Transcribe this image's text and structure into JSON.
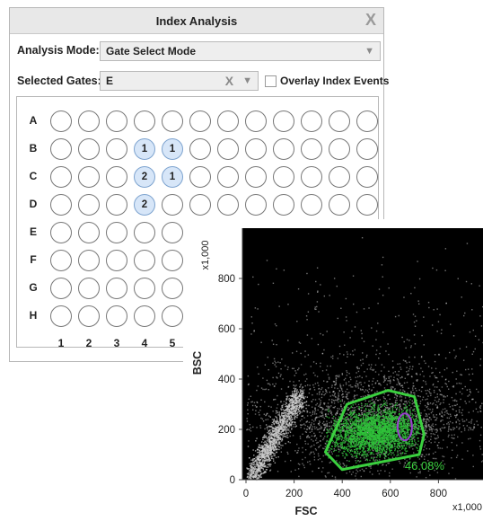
{
  "window": {
    "title": "Index Analysis",
    "close_glyph": "X"
  },
  "analysis_mode": {
    "label": "Analysis Mode:",
    "value": "Gate Select Mode",
    "caret": "▼"
  },
  "selected_gates": {
    "label": "Selected Gates:",
    "value": "E",
    "clear_glyph": "X",
    "caret": "▼"
  },
  "overlay": {
    "label": "Overlay Index Events",
    "checked": false
  },
  "plate": {
    "rows": [
      "A",
      "B",
      "C",
      "D",
      "E",
      "F",
      "G",
      "H"
    ],
    "columns": [
      "1",
      "2",
      "3",
      "4",
      "5"
    ],
    "visible_columns": 12,
    "selected_wells": [
      {
        "row": "B",
        "col": 4,
        "label": "1"
      },
      {
        "row": "B",
        "col": 5,
        "label": "1"
      },
      {
        "row": "C",
        "col": 4,
        "label": "2"
      },
      {
        "row": "C",
        "col": 5,
        "label": "1"
      },
      {
        "row": "D",
        "col": 4,
        "label": "2"
      }
    ]
  },
  "plot": {
    "x_label": "FSC",
    "y_label": "BSC",
    "x_multiplier": "x1,000",
    "y_multiplier": "x1,000",
    "x_ticks": [
      "0",
      "200",
      "400",
      "600",
      "800"
    ],
    "y_ticks": [
      "0",
      "200",
      "400",
      "600",
      "800"
    ],
    "gate_percent": "46.08%",
    "colors": {
      "background": "#000000",
      "events": "#cfcfcf",
      "gated_events": "#2fc23a",
      "gate_outline": "#3bd03f",
      "index_gate": "#9b3fd0",
      "percent_text": "#3bd03f"
    }
  }
}
